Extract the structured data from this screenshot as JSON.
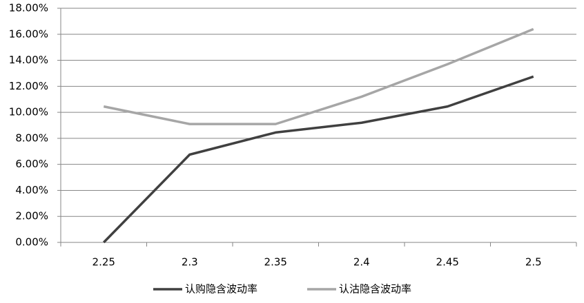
{
  "chart_data": {
    "type": "line",
    "categories": [
      "2.25",
      "2.3",
      "2.35",
      "2.4",
      "2.45",
      "2.5"
    ],
    "series": [
      {
        "name": "认购隐含波动率",
        "color": "#404040",
        "values": [
          0,
          6.75,
          8.45,
          9.2,
          10.45,
          12.75
        ]
      },
      {
        "name": "认沽隐含波动率",
        "color": "#a6a6a6",
        "values": [
          10.45,
          9.1,
          9.1,
          11.2,
          13.7,
          16.4
        ]
      }
    ],
    "ylim": [
      0,
      18
    ],
    "yticks": [
      {
        "value": 0,
        "label": "0.00%"
      },
      {
        "value": 2,
        "label": "2.00%"
      },
      {
        "value": 4,
        "label": "4.00%"
      },
      {
        "value": 6,
        "label": "6.00%"
      },
      {
        "value": 8,
        "label": "8.00%"
      },
      {
        "value": 10,
        "label": "10.00%"
      },
      {
        "value": 12,
        "label": "12.00%"
      },
      {
        "value": 14,
        "label": "14.00%"
      },
      {
        "value": 16,
        "label": "16.00%"
      },
      {
        "value": 18,
        "label": "18.00%"
      }
    ],
    "grid": true,
    "legend": "bottom"
  }
}
